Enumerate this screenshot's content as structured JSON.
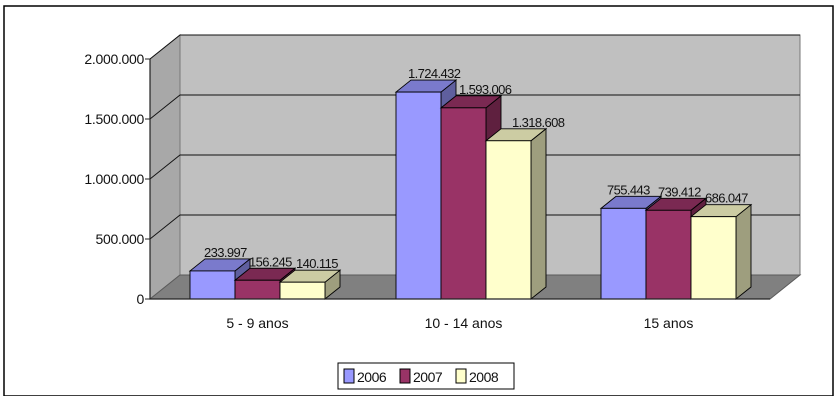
{
  "chart_data": {
    "type": "bar",
    "title": "",
    "xlabel": "",
    "ylabel": "",
    "categories": [
      "5 - 9 anos",
      "10 - 14 anos",
      "15 anos"
    ],
    "series": [
      {
        "name": "2006",
        "color": "#9999ff",
        "values": [
          233997,
          1724432,
          755443
        ],
        "labels": [
          "233.997",
          "1.724.432",
          "755.443"
        ]
      },
      {
        "name": "2007",
        "color": "#993366",
        "values": [
          156245,
          1593006,
          739412
        ],
        "labels": [
          "156.245",
          "1.593.006",
          "739.412"
        ]
      },
      {
        "name": "2008",
        "color": "#ffffcc",
        "values": [
          140115,
          1318608,
          686047
        ],
        "labels": [
          "140.115",
          "1.318.608",
          "686.047"
        ]
      }
    ],
    "yticks": [
      {
        "value": 0,
        "label": "0"
      },
      {
        "value": 500000,
        "label": "500.000"
      },
      {
        "value": 1000000,
        "label": "1.000.000"
      },
      {
        "value": 1500000,
        "label": "1.500.000"
      },
      {
        "value": 2000000,
        "label": "2.000.000"
      }
    ],
    "ylim": [
      0,
      2000000
    ],
    "grid": true,
    "three_d": true,
    "legend_position": "bottom"
  }
}
